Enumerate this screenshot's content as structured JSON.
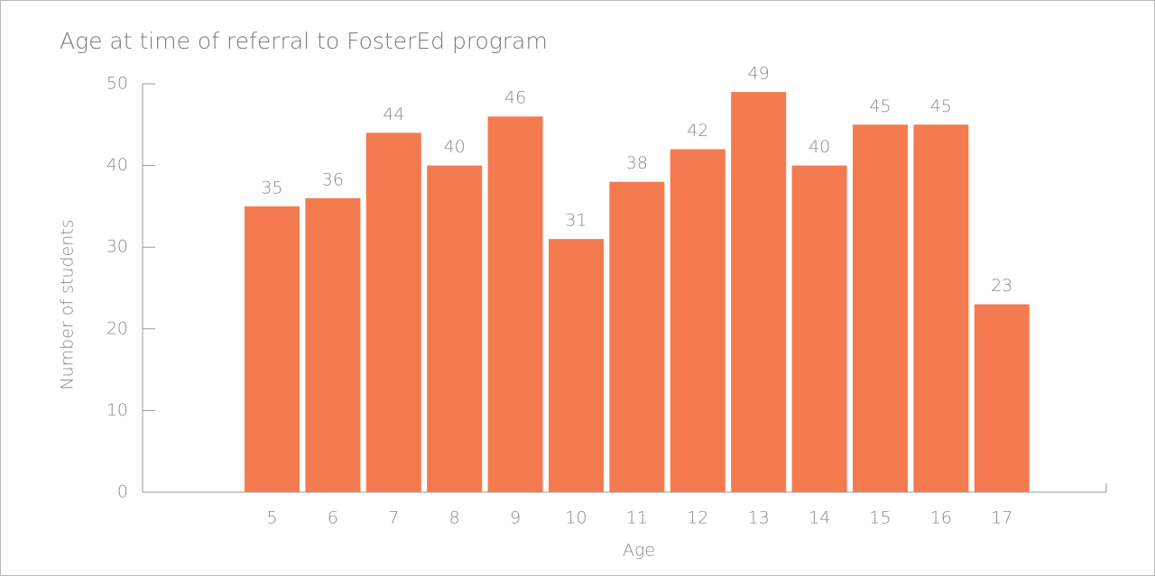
{
  "chart_data": {
    "type": "bar",
    "title": "Age at time of referral to FosterEd program",
    "x_label": "Age",
    "y_label": "Number of students",
    "categories": [
      "5",
      "6",
      "7",
      "8",
      "9",
      "10",
      "11",
      "12",
      "13",
      "14",
      "15",
      "16",
      "17"
    ],
    "values": [
      35,
      36,
      44,
      40,
      46,
      31,
      38,
      42,
      49,
      40,
      45,
      45,
      23
    ],
    "color": "#f47b50",
    "ylim": [
      0,
      50
    ],
    "yticks": [
      0,
      10,
      20,
      30,
      40,
      50
    ],
    "grid": false
  }
}
